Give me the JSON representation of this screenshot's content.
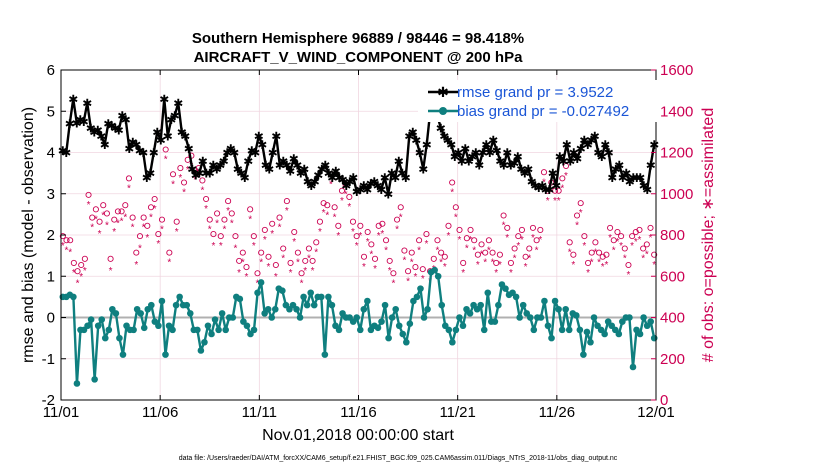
{
  "chart_data": {
    "type": "line",
    "title": "Southern Hemisphere 96889 / 98446 = 98.418%",
    "subtitle": "AIRCRAFT_V_WIND_COMPONENT @ 200 hPa",
    "xlabel": "Nov.01,2018 00:00:00 start",
    "ylabel": "rmse and bias (model - observation)",
    "ylabel_right": "# of obs: o=possible; ∗=assimilated",
    "x_ticks": [
      "11/01",
      "11/06",
      "11/11",
      "11/16",
      "11/21",
      "11/26",
      "12/01"
    ],
    "y_ticks": [
      "-2",
      "-1",
      "0",
      "1",
      "2",
      "3",
      "4",
      "5",
      "6"
    ],
    "y_right_ticks": [
      "0",
      "200",
      "400",
      "600",
      "800",
      "1000",
      "1200",
      "1400",
      "1600"
    ],
    "xlim_days": [
      0,
      30
    ],
    "ylim": [
      -2,
      6
    ],
    "ylim_right": [
      0,
      1600
    ],
    "footer": "data file: /Users/raeder/DAI/ATM_forcXX/CAM6_setup/f.e21.FHIST_BGC.f09_025.CAM6assim.011/Diags_NTrS_2018-11/obs_diag_output.nc",
    "colors": {
      "rmse": "#000000",
      "bias": "#0f7f7f",
      "obs": "#cc0052",
      "legend_text": "#1a55d6",
      "zero_line": "#b0b0b0",
      "grid": "#f0d6e0"
    },
    "series": [
      {
        "name": "rmse grand pr = 3.9522",
        "values": [
          4.05,
          4.0,
          4.7,
          5.3,
          4.72,
          4.8,
          4.75,
          5.2,
          4.6,
          4.5,
          4.55,
          4.4,
          4.2,
          4.7,
          4.65,
          4.6,
          4.55,
          4.9,
          4.8,
          4.1,
          4.25,
          4.2,
          4.05,
          4.0,
          3.4,
          3.5,
          4.0,
          4.5,
          4.3,
          5.3,
          4.4,
          4.8,
          4.9,
          5.2,
          4.5,
          4.4,
          4.1,
          3.6,
          3.45,
          3.5,
          3.8,
          3.5,
          3.5,
          3.7,
          3.6,
          3.7,
          3.8,
          4.0,
          4.1,
          4.0,
          3.6,
          3.5,
          3.4,
          3.8,
          4.05,
          4.0,
          4.4,
          4.2,
          3.7,
          3.6,
          4.0,
          4.4,
          3.7,
          3.8,
          3.7,
          3.55,
          3.85,
          3.7,
          3.5,
          3.6,
          3.3,
          3.2,
          3.3,
          3.45,
          3.6,
          3.7,
          3.5,
          3.4,
          3.55,
          3.4,
          3.35,
          3.2,
          3.3,
          3.4,
          3.05,
          3.1,
          3.2,
          3.1,
          3.25,
          3.3,
          3.2,
          3.1,
          3.4,
          3.0,
          3.5,
          3.4,
          3.8,
          3.5,
          3.4,
          4.4,
          4.5,
          4.3,
          4.0,
          3.6,
          4.2,
          5.0,
          5.05,
          4.9,
          4.6,
          4.4,
          4.3,
          4.2,
          3.9,
          4.0,
          3.8,
          4.1,
          3.8,
          3.9,
          4.0,
          3.7,
          4.0,
          4.2,
          4.0,
          4.3,
          4.05,
          3.8,
          3.7,
          4.0,
          3.7,
          3.75,
          3.9,
          3.6,
          3.5,
          3.6,
          3.3,
          3.2,
          3.15,
          3.2,
          3.1,
          3.1,
          3.5,
          3.2,
          3.9,
          3.8,
          4.2,
          3.8,
          4.0,
          3.85,
          4.1,
          4.3,
          4.2,
          4.3,
          4.4,
          4.0,
          3.9,
          4.2,
          4.0,
          3.4,
          3.6,
          3.7,
          3.4,
          3.5,
          3.3,
          3.4,
          3.4,
          3.4,
          3.2,
          3.1,
          3.7,
          4.2
        ]
      },
      {
        "name": "bias grand pr = -0.027492",
        "values": [
          0.5,
          0.5,
          0.55,
          0.5,
          -1.6,
          -0.3,
          -0.3,
          -0.2,
          -0.05,
          -1.5,
          -0.2,
          -0.05,
          -0.5,
          -0.3,
          0.2,
          0.1,
          -0.5,
          -0.9,
          -0.2,
          -0.3,
          -0.3,
          0.2,
          0.1,
          -0.25,
          0.2,
          0.3,
          -0.1,
          -0.2,
          0.4,
          -0.9,
          -0.2,
          -0.3,
          0.3,
          0.5,
          0.3,
          0.3,
          0.1,
          -0.3,
          -0.3,
          -0.8,
          -0.6,
          -0.2,
          -0.4,
          -0.05,
          -0.3,
          0.1,
          -0.3,
          0.0,
          0.0,
          0.5,
          0.45,
          -0.1,
          -0.2,
          -0.4,
          -0.3,
          0.6,
          0.85,
          0.1,
          0.2,
          0.0,
          0.2,
          0.7,
          0.65,
          0.3,
          0.2,
          0.3,
          0.2,
          0.0,
          0.5,
          0.3,
          0.6,
          0.3,
          0.5,
          0.5,
          -0.9,
          0.5,
          0.3,
          -0.2,
          -0.3,
          0.1,
          0.0,
          0.0,
          -0.1,
          0.0,
          -0.3,
          0.2,
          0.4,
          -0.3,
          -0.2,
          -0.25,
          -0.1,
          0.3,
          -0.5,
          0.0,
          0.2,
          -0.2,
          -0.4,
          -0.6,
          -0.15,
          0.4,
          0.5,
          0.7,
          0.0,
          0.2,
          1.1,
          1.15,
          1.0,
          0.3,
          -0.2,
          -0.3,
          -0.6,
          -0.3,
          0.0,
          -0.2,
          0.2,
          0.1,
          0.3,
          0.2,
          0.3,
          -0.3,
          0.6,
          -0.1,
          -0.1,
          0.3,
          0.8,
          0.7,
          0.55,
          0.6,
          0.5,
          0.0,
          0.3,
          0.1,
          0.0,
          -0.3,
          0.0,
          0.0,
          0.4,
          -0.2,
          -0.5,
          0.4,
          0.2,
          -0.3,
          0.2,
          -0.3,
          0.1,
          0.05,
          -0.3,
          -0.9,
          -0.35,
          -0.6,
          0.0,
          -0.2,
          -0.3,
          -0.4,
          -0.1,
          -0.2,
          -0.3,
          -0.4,
          -0.1,
          0.0,
          0.0,
          -1.2,
          -0.3,
          -0.4,
          0.0,
          -0.2,
          -0.1,
          -0.5
        ]
      }
    ],
    "obs_series": [
      {
        "name": "possible",
        "marker": "o",
        "values": [
          780,
          760,
          760,
          650,
          610,
          640,
          670,
          980,
          870,
          910,
          850,
          930,
          890,
          670,
          860,
          900,
          900,
          930,
          1060,
          870,
          700,
          780,
          870,
          830,
          920,
          960,
          790,
          860,
          1200,
          700,
          1080,
          850,
          1110,
          1040,
          1150,
          1170,
          1100,
          1110,
          1050,
          960,
          860,
          790,
          890,
          780,
          860,
          950,
          890,
          780,
          660,
          700,
          630,
          910,
          780,
          600,
          700,
          810,
          680,
          840,
          640,
          870,
          720,
          950,
          650,
          800,
          700,
          600,
          660,
          720,
          660,
          750,
          850,
          940,
          930,
          1080,
          920,
          830,
          1000,
          1030,
          970,
          850,
          780,
          830,
          680,
          800,
          740,
          670,
          830,
          840,
          760,
          660,
          600,
          860,
          920,
          710,
          610,
          700,
          630,
          760,
          620,
          790,
          610,
          670,
          760,
          700,
          680,
          830,
          1040,
          920,
          810,
          650,
          770,
          810,
          760,
          690,
          740,
          700,
          760,
          700,
          650,
          690,
          880,
          820,
          650,
          720,
          780,
          810,
          680,
          720,
          820,
          760,
          810,
          1090,
          1000,
          1040,
          1000,
          1000,
          1060,
          1120,
          750,
          690,
          880,
          940,
          780,
          650,
          700,
          750,
          700,
          680,
          690,
          820,
          760,
          800,
          780,
          720,
          640,
          780,
          800,
          810,
          720,
          740,
          820,
          690
        ]
      },
      {
        "name": "assimilated",
        "marker": "*",
        "values": [
          770,
          750,
          740,
          640,
          590,
          620,
          650,
          970,
          860,
          900,
          830,
          920,
          870,
          650,
          840,
          880,
          890,
          910,
          1050,
          860,
          680,
          760,
          860,
          810,
          910,
          950,
          780,
          850,
          1190,
          690,
          1070,
          840,
          1100,
          1030,
          1140,
          1160,
          1090,
          1100,
          1040,
          950,
          850,
          770,
          880,
          770,
          850,
          940,
          880,
          760,
          640,
          690,
          620,
          900,
          770,
          590,
          690,
          800,
          670,
          830,
          620,
          860,
          710,
          940,
          640,
          790,
          690,
          590,
          650,
          710,
          650,
          740,
          840,
          930,
          920,
          1070,
          910,
          820,
          990,
          1020,
          960,
          840,
          770,
          820,
          670,
          790,
          730,
          660,
          820,
          830,
          750,
          650,
          590,
          850,
          910,
          700,
          600,
          690,
          620,
          750,
          610,
          780,
          600,
          660,
          750,
          690,
          670,
          820,
          1030,
          910,
          800,
          640,
          760,
          800,
          750,
          680,
          730,
          690,
          750,
          690,
          640,
          680,
          870,
          810,
          640,
          710,
          770,
          800,
          670,
          710,
          810,
          750,
          800,
          1080,
          990,
          1030,
          990,
          990,
          1050,
          1110,
          740,
          680,
          870,
          930,
          770,
          640,
          690,
          740,
          690,
          670,
          680,
          810,
          750,
          790,
          770,
          710,
          630,
          770,
          790,
          800,
          710,
          730,
          810,
          680
        ]
      }
    ]
  }
}
